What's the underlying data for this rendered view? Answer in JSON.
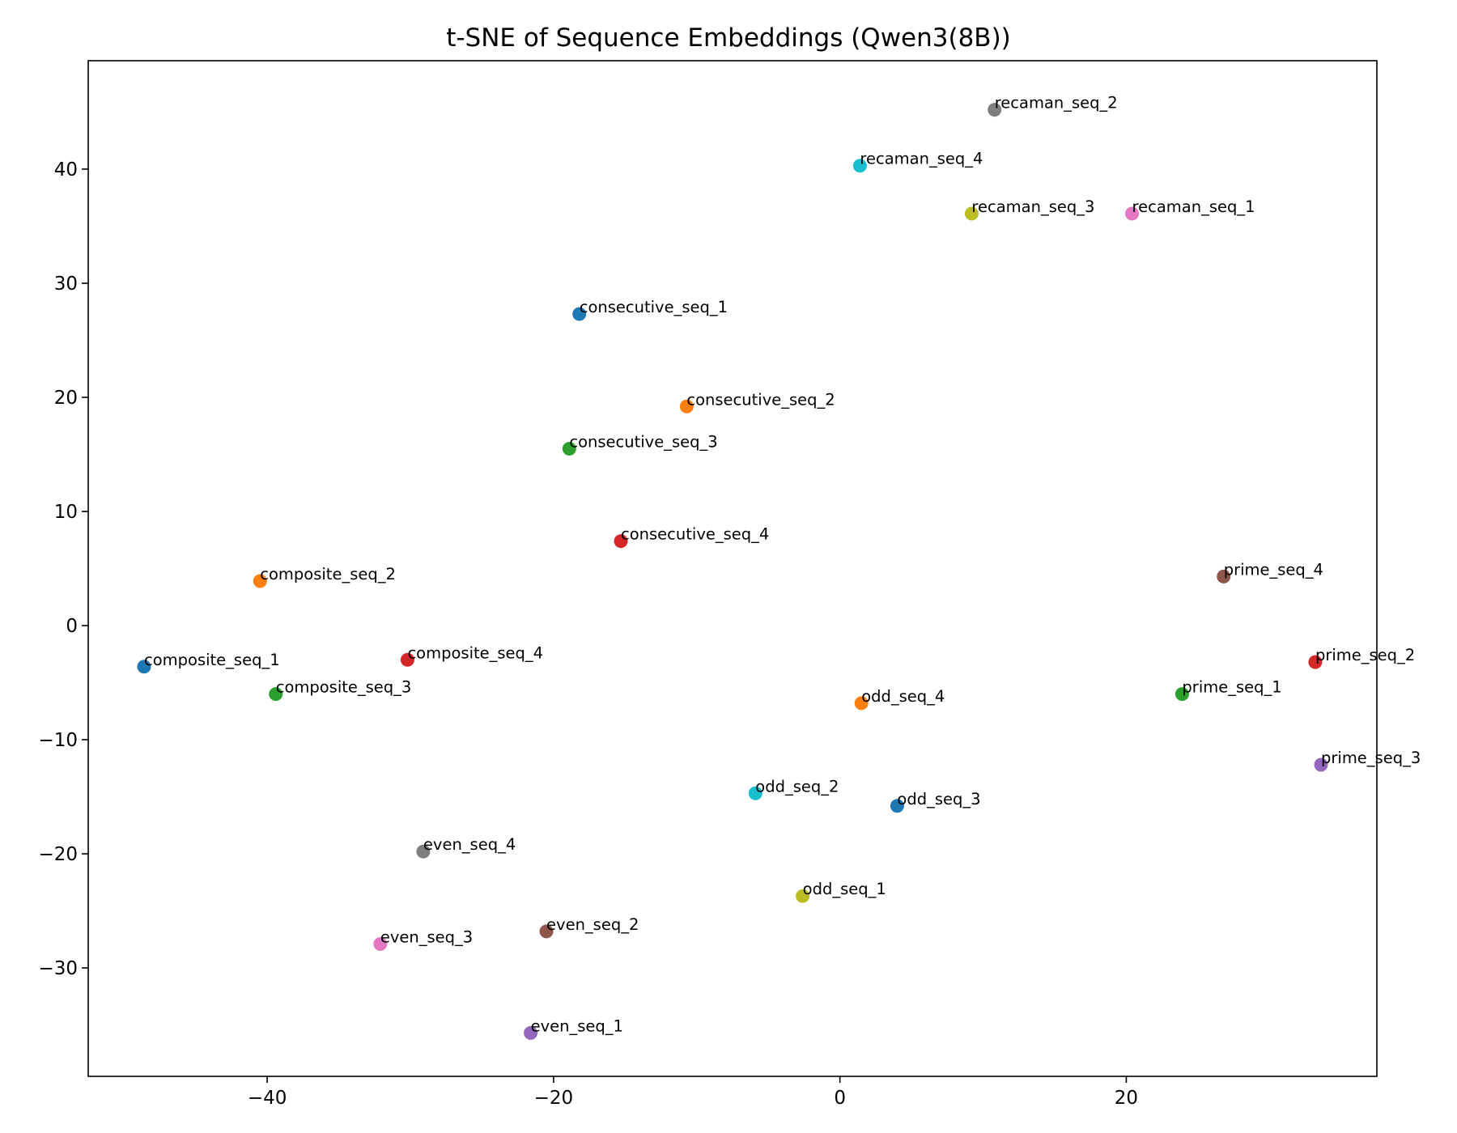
{
  "chart_data": {
    "type": "scatter",
    "title": "t-SNE of Sequence Embeddings (Qwen3(8B))",
    "xlabel": "",
    "ylabel": "",
    "xlim": [
      -52.5,
      37.5
    ],
    "ylim": [
      -39.5,
      49.5
    ],
    "xticks": [
      -40,
      -20,
      0,
      20
    ],
    "yticks": [
      -30,
      -20,
      -10,
      0,
      10,
      20,
      30,
      40
    ],
    "grid": false,
    "legend": "none",
    "points": [
      {
        "label": "recaman_seq_2",
        "x": 10.8,
        "y": 45.2,
        "color": "#7f7f7f"
      },
      {
        "label": "recaman_seq_4",
        "x": 1.4,
        "y": 40.3,
        "color": "#17becf"
      },
      {
        "label": "recaman_seq_3",
        "x": 9.2,
        "y": 36.1,
        "color": "#bcbd22"
      },
      {
        "label": "recaman_seq_1",
        "x": 20.4,
        "y": 36.1,
        "color": "#e377c2"
      },
      {
        "label": "consecutive_seq_1",
        "x": -18.2,
        "y": 27.3,
        "color": "#1f77b4"
      },
      {
        "label": "consecutive_seq_2",
        "x": -10.7,
        "y": 19.2,
        "color": "#ff7f0e"
      },
      {
        "label": "consecutive_seq_3",
        "x": -18.9,
        "y": 15.5,
        "color": "#2ca02c"
      },
      {
        "label": "consecutive_seq_4",
        "x": -15.3,
        "y": 7.4,
        "color": "#d62728"
      },
      {
        "label": "composite_seq_2",
        "x": -40.5,
        "y": 3.9,
        "color": "#ff7f0e"
      },
      {
        "label": "composite_seq_1",
        "x": -48.6,
        "y": -3.6,
        "color": "#1f77b4"
      },
      {
        "label": "composite_seq_4",
        "x": -30.2,
        "y": -3.0,
        "color": "#d62728"
      },
      {
        "label": "composite_seq_3",
        "x": -39.4,
        "y": -6.0,
        "color": "#2ca02c"
      },
      {
        "label": "prime_seq_4",
        "x": 26.8,
        "y": 4.3,
        "color": "#8c564b"
      },
      {
        "label": "prime_seq_2",
        "x": 33.2,
        "y": -3.2,
        "color": "#d62728"
      },
      {
        "label": "prime_seq_1",
        "x": 23.9,
        "y": -6.0,
        "color": "#2ca02c"
      },
      {
        "label": "prime_seq_3",
        "x": 33.6,
        "y": -12.2,
        "color": "#9467bd"
      },
      {
        "label": "odd_seq_4",
        "x": 1.5,
        "y": -6.8,
        "color": "#ff7f0e"
      },
      {
        "label": "odd_seq_2",
        "x": -5.9,
        "y": -14.7,
        "color": "#17becf"
      },
      {
        "label": "odd_seq_3",
        "x": 4.0,
        "y": -15.8,
        "color": "#1f77b4"
      },
      {
        "label": "odd_seq_1",
        "x": -2.6,
        "y": -23.7,
        "color": "#bcbd22"
      },
      {
        "label": "even_seq_4",
        "x": -29.1,
        "y": -19.8,
        "color": "#7f7f7f"
      },
      {
        "label": "even_seq_2",
        "x": -20.5,
        "y": -26.8,
        "color": "#8c564b"
      },
      {
        "label": "even_seq_3",
        "x": -32.1,
        "y": -27.9,
        "color": "#e377c2"
      },
      {
        "label": "even_seq_1",
        "x": -21.6,
        "y": -35.7,
        "color": "#9467bd"
      }
    ]
  }
}
